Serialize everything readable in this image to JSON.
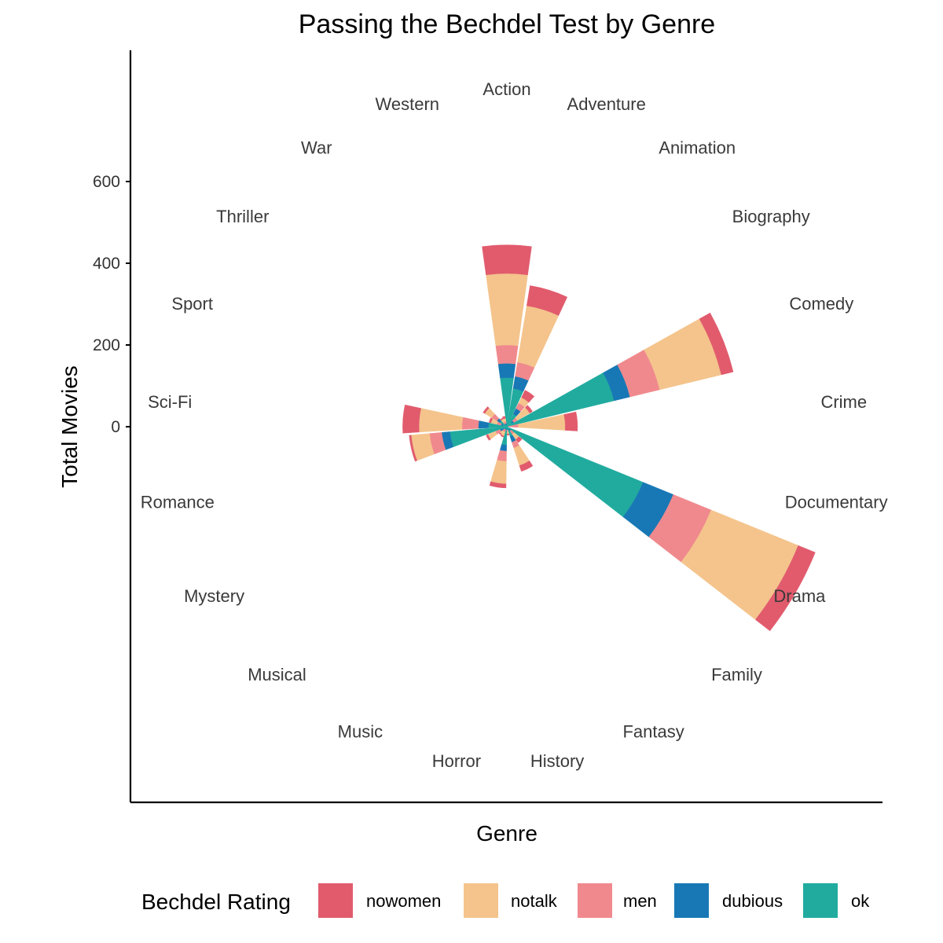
{
  "chart_data": {
    "type": "bar",
    "coord": "polar",
    "stacked": true,
    "title": "Passing the Bechdel Test by Genre",
    "xlabel": "Genre",
    "ylabel": "Total Movies",
    "yticks": [
      0,
      200,
      400,
      600
    ],
    "ylim": [
      0,
      800
    ],
    "grid": false,
    "legend": {
      "title": "Bechdel Rating",
      "position": "bottom"
    },
    "categories": [
      "Action",
      "Adventure",
      "Animation",
      "Biography",
      "Comedy",
      "Crime",
      "Documentary",
      "Drama",
      "Family",
      "Fantasy",
      "History",
      "Horror",
      "Music",
      "Musical",
      "Mystery",
      "Romance",
      "Sci-Fi",
      "Sport",
      "Thriller",
      "War",
      "Western"
    ],
    "series": [
      {
        "name": "ok",
        "color": "#21AB9F",
        "values": [
          120,
          95,
          35,
          15,
          270,
          2,
          0,
          360,
          8,
          25,
          5,
          45,
          5,
          5,
          10,
          140,
          45,
          10,
          20,
          5,
          5
        ]
      },
      {
        "name": "dubious",
        "color": "#1878B5",
        "values": [
          35,
          30,
          15,
          5,
          40,
          1,
          0,
          80,
          5,
          15,
          3,
          15,
          3,
          3,
          8,
          20,
          25,
          5,
          8,
          3,
          3
        ]
      },
      {
        "name": "men",
        "color": "#F0898D",
        "values": [
          45,
          35,
          15,
          10,
          75,
          25,
          0,
          100,
          10,
          15,
          4,
          25,
          6,
          6,
          12,
          30,
          40,
          10,
          15,
          5,
          5
        ]
      },
      {
        "name": "notalk",
        "color": "#F4C48C",
        "values": [
          175,
          140,
          15,
          35,
          155,
          115,
          0,
          230,
          15,
          45,
          6,
          55,
          10,
          8,
          20,
          45,
          105,
          15,
          20,
          8,
          8
        ]
      },
      {
        "name": "nowomen",
        "color": "#E15B6D",
        "values": [
          70,
          50,
          20,
          8,
          30,
          30,
          0,
          45,
          10,
          15,
          3,
          10,
          3,
          3,
          5,
          5,
          40,
          5,
          5,
          3,
          5
        ]
      }
    ]
  }
}
